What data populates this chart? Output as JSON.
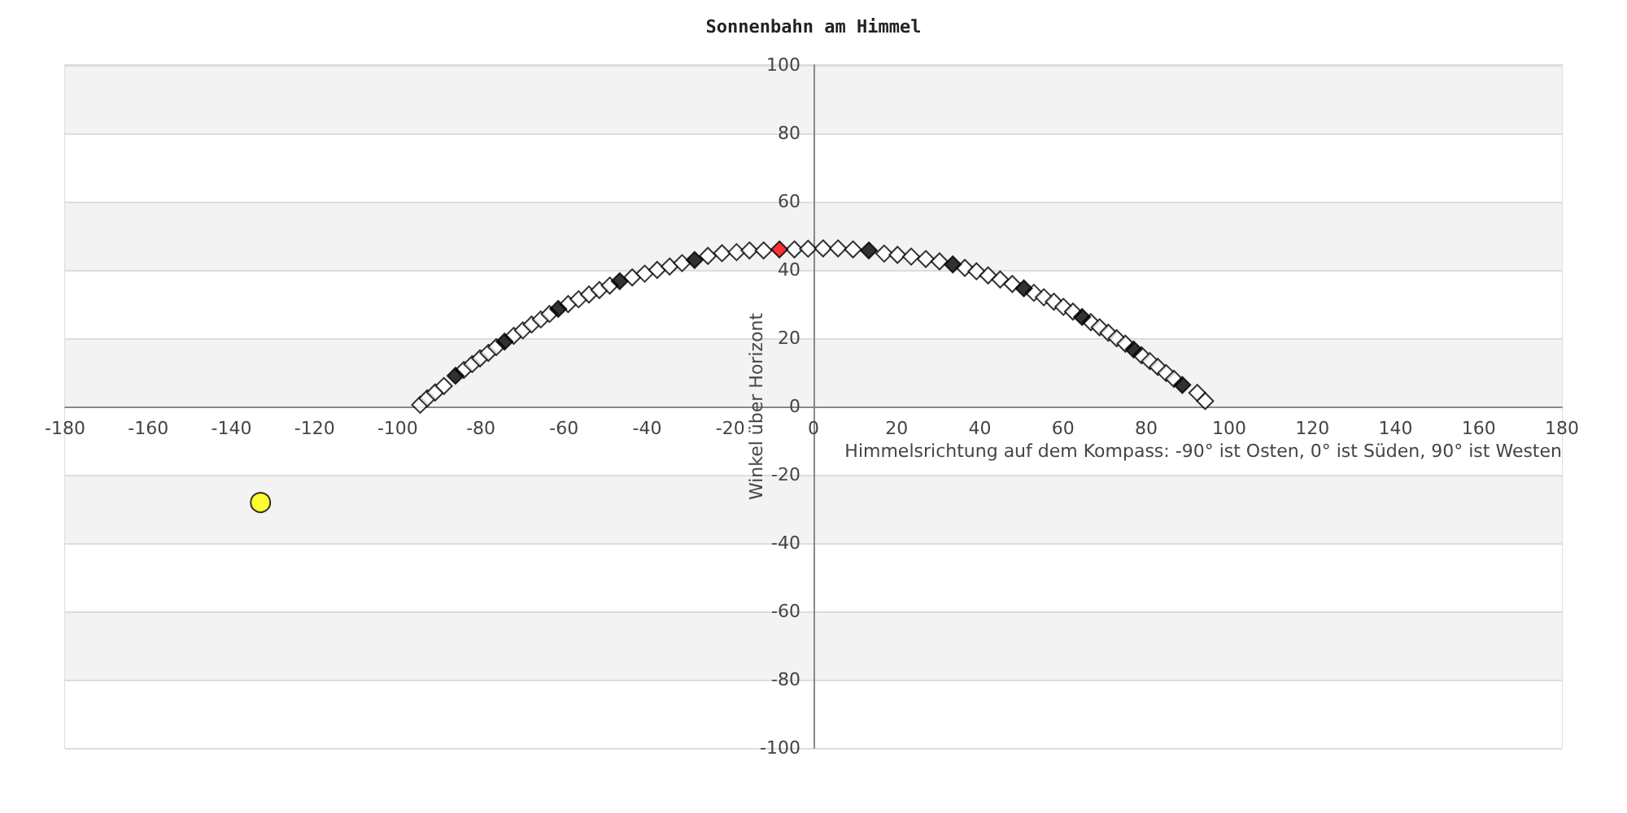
{
  "chart_data": {
    "type": "scatter",
    "title": "Sonnenbahn am Himmel",
    "xlabel": "Himmelsrichtung auf dem Kompass: -90° ist Osten, 0° ist Süden, 90° ist Westen",
    "ylabel": "Winkel über Horizont",
    "xlim": [
      -180,
      180
    ],
    "xticks": [
      -180,
      -160,
      -140,
      -120,
      -100,
      -80,
      -60,
      -40,
      -20,
      0,
      20,
      40,
      60,
      80,
      100,
      120,
      140,
      160,
      180
    ],
    "ylim": [
      -100,
      100
    ],
    "yticks": [
      -100,
      -80,
      -60,
      -40,
      -20,
      0,
      20,
      40,
      60,
      80,
      100
    ],
    "grid": "y",
    "marker": "diamond",
    "series": [
      {
        "color": "#ffffff",
        "x": [
          -94.6,
          -92.9,
          -91.0,
          -88.9,
          -84.1,
          -82.1,
          -80.2,
          -78.2,
          -76.3,
          -72.1,
          -69.9,
          -67.8,
          -65.6,
          -63.5,
          -59.0,
          -56.5,
          -54.0,
          -51.5,
          -49.0,
          -43.6,
          -40.6,
          -37.6,
          -34.6,
          -31.6,
          -25.4,
          -22.0,
          -18.5,
          -15.4,
          -12.0,
          -4.6,
          -1.3,
          2.3,
          5.9,
          9.5,
          17.0,
          20.2,
          23.5,
          27.0,
          30.3,
          36.4,
          39.2,
          42.0,
          44.9,
          47.8,
          53.0,
          55.4,
          57.8,
          60.1,
          62.4,
          66.7,
          68.8,
          70.9,
          72.9,
          75.0,
          78.9,
          80.9,
          82.8,
          84.8,
          86.7,
          92.3,
          94.2
        ],
        "values": [
          0.5,
          2.4,
          4.1,
          6.0,
          10.7,
          12.4,
          14.1,
          15.7,
          17.4,
          20.7,
          22.3,
          24.0,
          25.5,
          27.1,
          30.0,
          31.4,
          32.8,
          34.1,
          35.4,
          37.8,
          38.9,
          40.0,
          41.0,
          42.0,
          44.1,
          44.9,
          45.2,
          45.7,
          45.7,
          46.0,
          46.2,
          46.3,
          46.3,
          46.0,
          44.8,
          44.4,
          43.9,
          43.2,
          42.5,
          40.6,
          39.6,
          38.4,
          37.2,
          35.9,
          33.3,
          32.0,
          30.7,
          29.2,
          27.8,
          24.7,
          23.2,
          21.6,
          20.0,
          18.4,
          15.0,
          13.3,
          11.6,
          9.8,
          8.1,
          4.0,
          1.6
        ]
      },
      {
        "color": "#000000",
        "x": [
          -86.1,
          -74.3,
          -61.4,
          -46.6,
          -28.6,
          13.3,
          33.5,
          50.6,
          64.6,
          77.0,
          88.7
        ],
        "values": [
          9.0,
          19.0,
          28.6,
          36.7,
          42.9,
          45.7,
          41.6,
          34.6,
          26.2,
          16.7,
          6.3
        ]
      },
      {
        "color": "#ff0000",
        "x": [
          -8.2
        ],
        "values": [
          46.0
        ]
      },
      {
        "color": "#ffff00",
        "marker": "circle",
        "x": [
          -133.0
        ],
        "values": [
          -28.1
        ]
      }
    ]
  }
}
